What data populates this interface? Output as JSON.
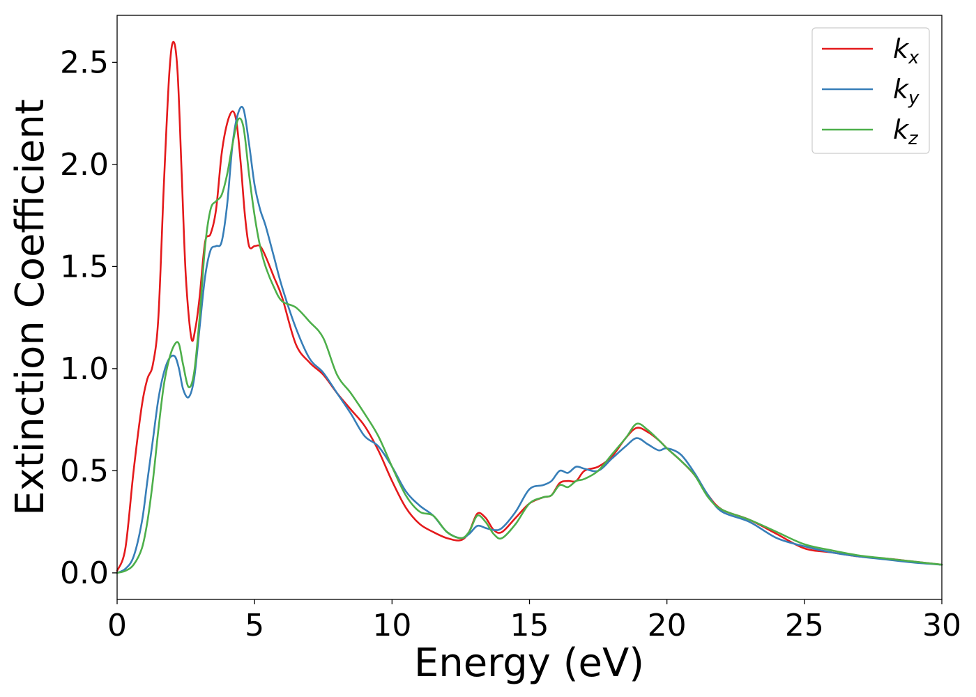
{
  "chart_data": {
    "type": "line",
    "xlabel": "Energy (eV)",
    "ylabel": "Extinction Coefficient",
    "xlim": [
      0,
      30
    ],
    "ylim": [
      -0.13,
      2.73
    ],
    "grid": false,
    "legend_position": "top-right",
    "x_ticks": [
      "0",
      "5",
      "10",
      "15",
      "20",
      "25",
      "30"
    ],
    "y_ticks": [
      "0.0",
      "0.5",
      "1.0",
      "1.5",
      "2.0",
      "2.5"
    ],
    "series": [
      {
        "name": "k_x",
        "legend_base": "k",
        "legend_sub": "x",
        "color": "#e41a1c",
        "x": [
          0,
          0.3,
          0.6,
          0.9,
          1.1,
          1.3,
          1.5,
          1.7,
          1.9,
          2.05,
          2.2,
          2.35,
          2.5,
          2.7,
          2.85,
          3.0,
          3.2,
          3.4,
          3.6,
          3.8,
          4.0,
          4.2,
          4.35,
          4.5,
          4.65,
          4.8,
          5.0,
          5.2,
          5.4,
          5.7,
          6.0,
          6.5,
          7.0,
          7.5,
          8.0,
          8.5,
          9.0,
          9.5,
          10.0,
          10.5,
          11.0,
          11.5,
          12.0,
          12.5,
          12.8,
          13.1,
          13.4,
          13.7,
          14.0,
          14.5,
          15.0,
          15.5,
          15.8,
          16.1,
          16.4,
          16.7,
          17.0,
          17.5,
          18.0,
          18.5,
          18.9,
          19.3,
          19.7,
          20.0,
          20.5,
          21.0,
          21.5,
          22.0,
          23.0,
          24.0,
          25.0,
          26.0,
          27.0,
          28.0,
          29.0,
          30.0
        ],
        "y": [
          0.01,
          0.12,
          0.5,
          0.82,
          0.95,
          1.02,
          1.25,
          1.9,
          2.45,
          2.6,
          2.45,
          1.95,
          1.45,
          1.15,
          1.2,
          1.35,
          1.62,
          1.66,
          1.78,
          2.05,
          2.2,
          2.26,
          2.2,
          2.0,
          1.75,
          1.6,
          1.6,
          1.6,
          1.55,
          1.45,
          1.35,
          1.12,
          1.03,
          0.97,
          0.88,
          0.8,
          0.72,
          0.6,
          0.45,
          0.32,
          0.24,
          0.2,
          0.17,
          0.16,
          0.2,
          0.29,
          0.27,
          0.21,
          0.2,
          0.27,
          0.34,
          0.37,
          0.38,
          0.44,
          0.45,
          0.45,
          0.5,
          0.52,
          0.57,
          0.66,
          0.71,
          0.69,
          0.65,
          0.61,
          0.55,
          0.48,
          0.38,
          0.31,
          0.26,
          0.19,
          0.12,
          0.1,
          0.08,
          0.07,
          0.055,
          0.04
        ]
      },
      {
        "name": "k_y",
        "legend_base": "k",
        "legend_sub": "y",
        "color": "#377eb8",
        "x": [
          0,
          0.3,
          0.6,
          0.9,
          1.1,
          1.3,
          1.5,
          1.7,
          1.9,
          2.1,
          2.25,
          2.4,
          2.6,
          2.8,
          3.0,
          3.2,
          3.4,
          3.6,
          3.8,
          4.0,
          4.2,
          4.4,
          4.6,
          4.8,
          5.0,
          5.2,
          5.4,
          5.7,
          6.0,
          6.5,
          7.0,
          7.5,
          8.0,
          8.5,
          9.0,
          9.5,
          10.0,
          10.5,
          11.0,
          11.5,
          12.0,
          12.5,
          12.8,
          13.1,
          13.4,
          13.7,
          14.0,
          14.5,
          15.0,
          15.5,
          15.8,
          16.1,
          16.4,
          16.7,
          17.0,
          17.5,
          18.0,
          18.5,
          18.9,
          19.3,
          19.7,
          20.0,
          20.5,
          21.0,
          21.5,
          22.0,
          23.0,
          24.0,
          25.0,
          26.0,
          27.0,
          28.0,
          29.0,
          30.0
        ],
        "y": [
          0.0,
          0.02,
          0.08,
          0.25,
          0.45,
          0.65,
          0.85,
          0.98,
          1.05,
          1.06,
          1.0,
          0.9,
          0.86,
          0.95,
          1.2,
          1.45,
          1.58,
          1.6,
          1.62,
          1.8,
          2.1,
          2.25,
          2.27,
          2.1,
          1.9,
          1.78,
          1.7,
          1.55,
          1.4,
          1.2,
          1.05,
          0.98,
          0.88,
          0.78,
          0.67,
          0.62,
          0.52,
          0.4,
          0.33,
          0.28,
          0.2,
          0.17,
          0.19,
          0.23,
          0.22,
          0.21,
          0.22,
          0.3,
          0.41,
          0.43,
          0.45,
          0.5,
          0.49,
          0.52,
          0.51,
          0.5,
          0.56,
          0.62,
          0.66,
          0.63,
          0.6,
          0.61,
          0.58,
          0.49,
          0.38,
          0.3,
          0.25,
          0.17,
          0.13,
          0.1,
          0.08,
          0.065,
          0.05,
          0.04
        ]
      },
      {
        "name": "k_z",
        "legend_base": "k",
        "legend_sub": "z",
        "color": "#4daf4a",
        "x": [
          0,
          0.3,
          0.6,
          0.9,
          1.1,
          1.3,
          1.5,
          1.7,
          1.9,
          2.1,
          2.25,
          2.4,
          2.6,
          2.8,
          3.0,
          3.2,
          3.4,
          3.6,
          3.8,
          4.0,
          4.2,
          4.4,
          4.6,
          4.8,
          5.0,
          5.2,
          5.4,
          5.7,
          6.0,
          6.5,
          7.0,
          7.5,
          8.0,
          8.5,
          9.0,
          9.5,
          10.0,
          10.5,
          11.0,
          11.5,
          12.0,
          12.5,
          12.8,
          13.1,
          13.4,
          13.7,
          14.0,
          14.5,
          15.0,
          15.5,
          15.8,
          16.1,
          16.4,
          16.7,
          17.0,
          17.5,
          18.0,
          18.5,
          18.9,
          19.3,
          19.7,
          20.0,
          20.5,
          21.0,
          21.5,
          22.0,
          23.0,
          24.0,
          25.0,
          26.0,
          27.0,
          28.0,
          29.0,
          30.0
        ],
        "y": [
          0.0,
          0.01,
          0.04,
          0.12,
          0.25,
          0.45,
          0.7,
          0.92,
          1.05,
          1.12,
          1.12,
          1.02,
          0.91,
          0.98,
          1.25,
          1.6,
          1.78,
          1.82,
          1.85,
          1.95,
          2.1,
          2.22,
          2.18,
          1.95,
          1.75,
          1.6,
          1.5,
          1.4,
          1.33,
          1.3,
          1.23,
          1.15,
          0.97,
          0.88,
          0.78,
          0.67,
          0.52,
          0.38,
          0.3,
          0.28,
          0.2,
          0.17,
          0.2,
          0.28,
          0.25,
          0.19,
          0.17,
          0.24,
          0.34,
          0.37,
          0.38,
          0.43,
          0.42,
          0.45,
          0.46,
          0.5,
          0.58,
          0.66,
          0.73,
          0.7,
          0.65,
          0.61,
          0.55,
          0.48,
          0.37,
          0.31,
          0.26,
          0.2,
          0.14,
          0.11,
          0.085,
          0.07,
          0.055,
          0.04
        ]
      }
    ]
  }
}
